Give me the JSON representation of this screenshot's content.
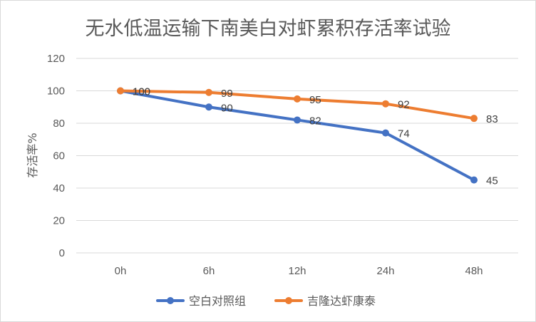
{
  "chart_data": {
    "type": "line",
    "title": "无水低温运输下南美白对虾累积存活率试验",
    "xlabel": "",
    "ylabel": "存活率%",
    "categories": [
      "0h",
      "6h",
      "12h",
      "24h",
      "48h"
    ],
    "ylim": [
      0,
      120
    ],
    "yticks": [
      0,
      20,
      40,
      60,
      80,
      100,
      120
    ],
    "grid": true,
    "legend": "bottom",
    "series": [
      {
        "name": "空白对照组",
        "color": "#4472c4",
        "values": [
          100,
          90,
          82,
          74,
          45
        ]
      },
      {
        "name": "吉隆达虾康泰",
        "color": "#ed7d31",
        "values": [
          100,
          99,
          95,
          92,
          83
        ]
      }
    ]
  }
}
